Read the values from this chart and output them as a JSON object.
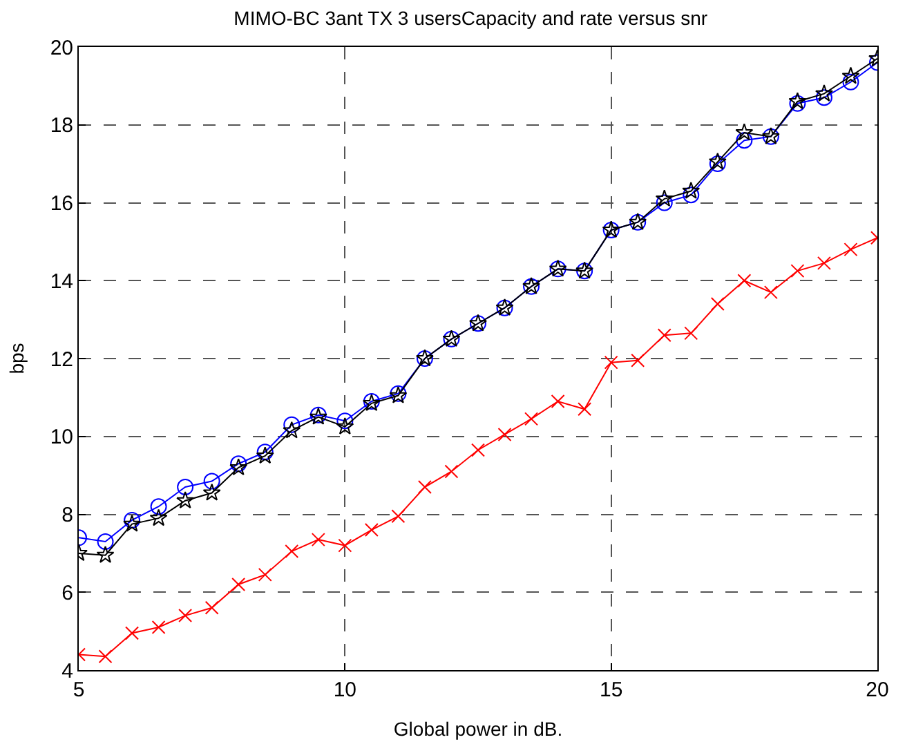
{
  "chart_data": {
    "type": "line",
    "title": "MIMO-BC 3ant TX 3 usersCapacity and rate versus snr",
    "xlabel": "Global power in dB.",
    "ylabel": "bps",
    "x": [
      5,
      5.5,
      6,
      6.5,
      7,
      7.5,
      8,
      8.5,
      9,
      9.5,
      10,
      10.5,
      11,
      11.5,
      12,
      12.5,
      13,
      13.5,
      14,
      14.5,
      15,
      15.5,
      16,
      16.5,
      17,
      17.5,
      18,
      18.5,
      19,
      19.5,
      20
    ],
    "series": [
      {
        "color": "#0000ff",
        "marker": "circle",
        "values": [
          7.4,
          7.3,
          7.85,
          8.2,
          8.7,
          8.85,
          9.3,
          9.6,
          10.3,
          10.55,
          10.4,
          10.9,
          11.1,
          12.0,
          12.5,
          12.9,
          13.3,
          13.85,
          14.3,
          14.25,
          15.3,
          15.5,
          16.0,
          16.2,
          17.0,
          17.6,
          17.7,
          18.55,
          18.7,
          19.1,
          19.6
        ]
      },
      {
        "color": "#000000",
        "marker": "star",
        "values": [
          7.0,
          6.95,
          7.75,
          7.9,
          8.35,
          8.55,
          9.2,
          9.5,
          10.15,
          10.5,
          10.25,
          10.85,
          11.05,
          12.0,
          12.5,
          12.9,
          13.3,
          13.85,
          14.3,
          14.25,
          15.3,
          15.5,
          16.1,
          16.3,
          17.05,
          17.8,
          17.7,
          18.6,
          18.8,
          19.25,
          19.7
        ]
      },
      {
        "color": "#ff0000",
        "marker": "cross",
        "values": [
          4.4,
          4.35,
          4.95,
          5.1,
          5.4,
          5.6,
          6.2,
          6.45,
          7.05,
          7.35,
          7.2,
          7.6,
          7.95,
          8.7,
          9.1,
          9.65,
          10.05,
          10.45,
          10.9,
          10.7,
          11.9,
          11.95,
          12.6,
          12.65,
          13.4,
          14.0,
          13.7,
          14.25,
          14.45,
          14.8,
          15.1
        ]
      }
    ],
    "xlim": [
      5,
      20
    ],
    "xticks": [
      5,
      10,
      15,
      20
    ],
    "ylim": [
      4,
      20
    ],
    "yticks": [
      4,
      6,
      8,
      10,
      12,
      14,
      16,
      18,
      20
    ],
    "grid": true,
    "line_style": "solid"
  }
}
